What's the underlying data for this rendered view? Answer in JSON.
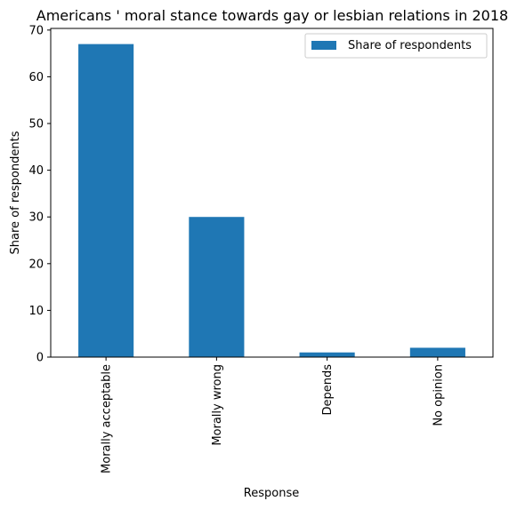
{
  "chart_data": {
    "type": "bar",
    "title": "Americans ' moral stance towards gay or lesbian relations in 2018",
    "xlabel": "Response",
    "ylabel": "Share of respondents",
    "categories": [
      "Morally acceptable",
      "Morally wrong",
      "Depends",
      "No opinion"
    ],
    "series": [
      {
        "name": "Share of respondents",
        "values": [
          67,
          30,
          1,
          2
        ],
        "color": "#1f77b4"
      }
    ],
    "ylim": [
      0,
      70.35
    ],
    "yticks": [
      0,
      10,
      20,
      30,
      40,
      50,
      60,
      70
    ],
    "grid": false,
    "legend": "top-right"
  }
}
